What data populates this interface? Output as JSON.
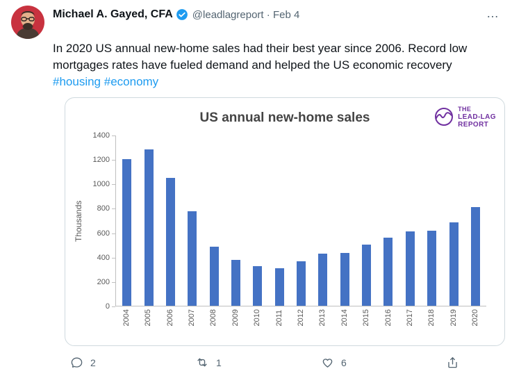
{
  "tweet": {
    "author": "Michael A. Gayed, CFA",
    "handle": "@leadlagreport",
    "separator": "·",
    "date": "Feb 4",
    "more_label": "…",
    "text": "In 2020 US annual new-home sales had their best year since 2006. Record low mortgages rates have fueled demand and helped the US economic recovery",
    "hashtags": [
      "#housing",
      "#economy"
    ],
    "actions": {
      "reply_count": "2",
      "retweet_count": "1",
      "like_count": "6"
    }
  },
  "brand": {
    "line1": "THE",
    "line2": "LEAD-LAG",
    "line3": "REPORT"
  },
  "chart_data": {
    "type": "bar",
    "title": "US annual new-home sales",
    "ylabel": "Thousands",
    "xlabel": "",
    "categories": [
      "2004",
      "2005",
      "2006",
      "2007",
      "2008",
      "2009",
      "2010",
      "2011",
      "2012",
      "2013",
      "2014",
      "2015",
      "2016",
      "2017",
      "2018",
      "2019",
      "2020"
    ],
    "values": [
      1203,
      1283,
      1051,
      776,
      485,
      375,
      323,
      306,
      368,
      429,
      437,
      501,
      561,
      613,
      617,
      683,
      811
    ],
    "ylim": [
      0,
      1400
    ],
    "yticks": [
      0,
      200,
      400,
      600,
      800,
      1000,
      1200,
      1400
    ],
    "grid": false,
    "legend": "none",
    "bar_color": "#4472c4"
  },
  "colors": {
    "link_blue": "#1d9bf0",
    "verified_blue": "#1d9bf0",
    "bar_blue": "#4472c4",
    "brand_purple": "#7030a0",
    "muted_gray": "#536471"
  }
}
